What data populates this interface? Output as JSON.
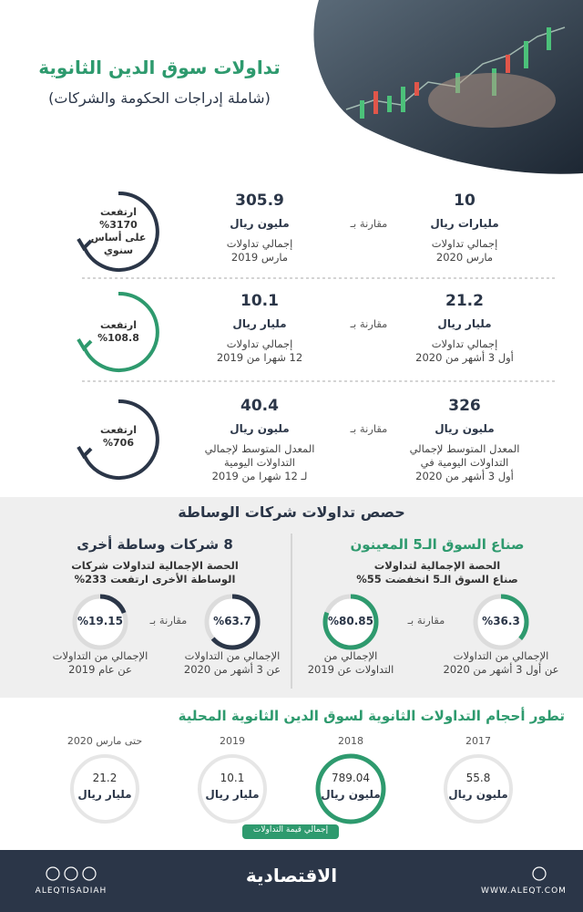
{
  "header": {
    "title": "تداولات سوق الدين الثانوية",
    "subtitle": "(شاملة إدراجات الحكومة والشركات)"
  },
  "comparisons": [
    {
      "current": {
        "value": 10,
        "unit": "مليارات ريال",
        "label": "إجمالي تداولات\nمارس 2020"
      },
      "compare": "مقارنة بـ",
      "previous": {
        "value": 305.9,
        "unit": "مليون ريال",
        "label": "إجمالي تداولات\nمارس 2019"
      },
      "change": "ارتفعت\n%3170\nعلى أساس\nسنوي"
    },
    {
      "current": {
        "value": 21.2,
        "unit": "مليار ريال",
        "label": "إجمالي تداولات\nأول 3 أشهر من 2020"
      },
      "compare": "مقارنة بـ",
      "previous": {
        "value": 10.1,
        "unit": "مليار ريال",
        "label": "إجمالي تداولات\n12 شهرا من 2019"
      },
      "change": "ارتفعت\n%108.8"
    },
    {
      "current": {
        "value": 326,
        "unit": "مليون ريال",
        "label": "المعدل المتوسط لإجمالي\nالتداولات اليومية في\nأول 3 أشهر من 2020"
      },
      "compare": "مقارنة بـ",
      "previous": {
        "value": 40.4,
        "unit": "مليون ريال",
        "label": "المعدل المتوسط لإجمالي\nالتداولات اليومية\nلـ 12 شهرا من 2019"
      },
      "change": "ارتفعت\n%706"
    }
  ],
  "brokerage": {
    "title": "حصص تداولات شركات الوساطة",
    "groups": [
      {
        "heading": "صناع السوق الـ5 المعينون",
        "note": "الحصة الإجمالية لتداولات\nصناع السوق الـ5 انخفضت 55%",
        "compare": "مقارنة بـ",
        "shares": [
          {
            "value": 36.3,
            "label": "%36.3",
            "caption": "الإجمالي من التداولات\nعن أول 3 أشهر من 2020"
          },
          {
            "value": 80.85,
            "label": "%80.85",
            "caption": "الإجمالي من\nالتداولات عن 2019"
          }
        ]
      },
      {
        "heading": "8 شركات وساطة أخرى",
        "note": "الحصة الإجمالية لتداولات شركات\nالوساطة الأخرى ارتفعت 233%",
        "compare": "مقارنة بـ",
        "shares": [
          {
            "value": 63.7,
            "label": "%63.7",
            "caption": "الإجمالي من التداولات\nعن 3 أشهر من 2020"
          },
          {
            "value": 19.15,
            "label": "%19.15",
            "caption": "الإجمالي من التداولات\nعن عام 2019"
          }
        ]
      }
    ]
  },
  "evolution": {
    "title": "تطور أحجام التداولات الثانوية لسوق الدين الثانوية المحلية",
    "legend": "إجمالي قيمة التداولات",
    "years": [
      {
        "period": "2017",
        "value": 55.8,
        "unit": "مليون ريال"
      },
      {
        "period": "2018",
        "value": 789.04,
        "unit": "مليون ريال"
      },
      {
        "period": "2019",
        "value": 10.1,
        "unit": "مليار ريال"
      },
      {
        "period": "حتى مارس 2020",
        "value": 21.2,
        "unit": "مليار ريال"
      }
    ]
  },
  "footer": {
    "social": "ALEQTISADIAH",
    "brand": "الاقتصادية",
    "website": "WWW.ALEQT.COM"
  }
}
